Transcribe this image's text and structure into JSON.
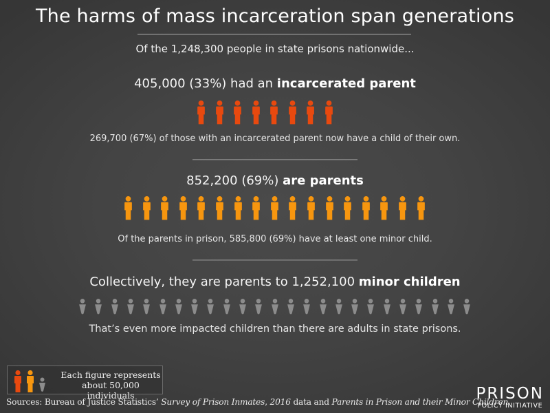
{
  "header": {
    "title": "The harms of mass incarceration span generations",
    "subtitle": "Of the 1,248,300 people in state prisons nationwide..."
  },
  "section_incarcerated_parent": {
    "heading_prefix": "405,000 (33%) had an ",
    "heading_bold": "incarcerated parent",
    "note": "269,700 (67%) of those with an incarcerated parent now have a child of their own.",
    "figure_color": "#e8490f",
    "figure_count": 8.1
  },
  "section_parents": {
    "heading_prefix": "852,200 (69%) ",
    "heading_bold": "are parents",
    "note": "Of the parents in prison, 585,800 (69%) have at least one minor child.",
    "figure_color": "#f7960f",
    "figure_count": 17
  },
  "section_children": {
    "heading_prefix": "Collectively, they are parents to 1,252,100 ",
    "heading_bold": "minor children",
    "note": "That’s even more impacted children than there are adults in state prisons.",
    "figure_color": "#8c8c8c",
    "figure_count": 25
  },
  "legend": {
    "line1": "Each figure represents",
    "line2": "about 50,000 individuals",
    "icons": [
      "adult-figure-red-icon",
      "adult-figure-orange-icon",
      "child-figure-gray-icon"
    ]
  },
  "sources": {
    "prefix": "Sources: Bureau of Justice Statistics’ ",
    "italic1": "Survey of Prison Inmates",
    "middle1": ", ",
    "italic2": "2016",
    "middle2": " data and ",
    "italic3": "Parents in Prison and their Minor Children"
  },
  "logo": {
    "line1": "PRISON",
    "line2": "POLICY INITIATIVE"
  },
  "chart_data": {
    "type": "pictograph",
    "title": "The harms of mass incarceration span generations",
    "unit": "Each figure represents about 50,000 individuals",
    "base": {
      "label": "people in state prisons nationwide",
      "value": 1248300
    },
    "series": [
      {
        "name": "had an incarcerated parent",
        "value": 405000,
        "percent": 33,
        "figures": 8.1,
        "color": "#e8490f"
      },
      {
        "name": "are parents",
        "value": 852200,
        "percent": 69,
        "figures": 17,
        "color": "#f7960f"
      },
      {
        "name": "minor children",
        "value": 1252100,
        "figures": 25,
        "color": "#8c8c8c"
      }
    ],
    "notes": [
      {
        "label": "with an incarcerated parent now have a child of their own",
        "value": 269700,
        "percent": 67
      },
      {
        "label": "parents with at least one minor child",
        "value": 585800,
        "percent": 69
      }
    ]
  }
}
